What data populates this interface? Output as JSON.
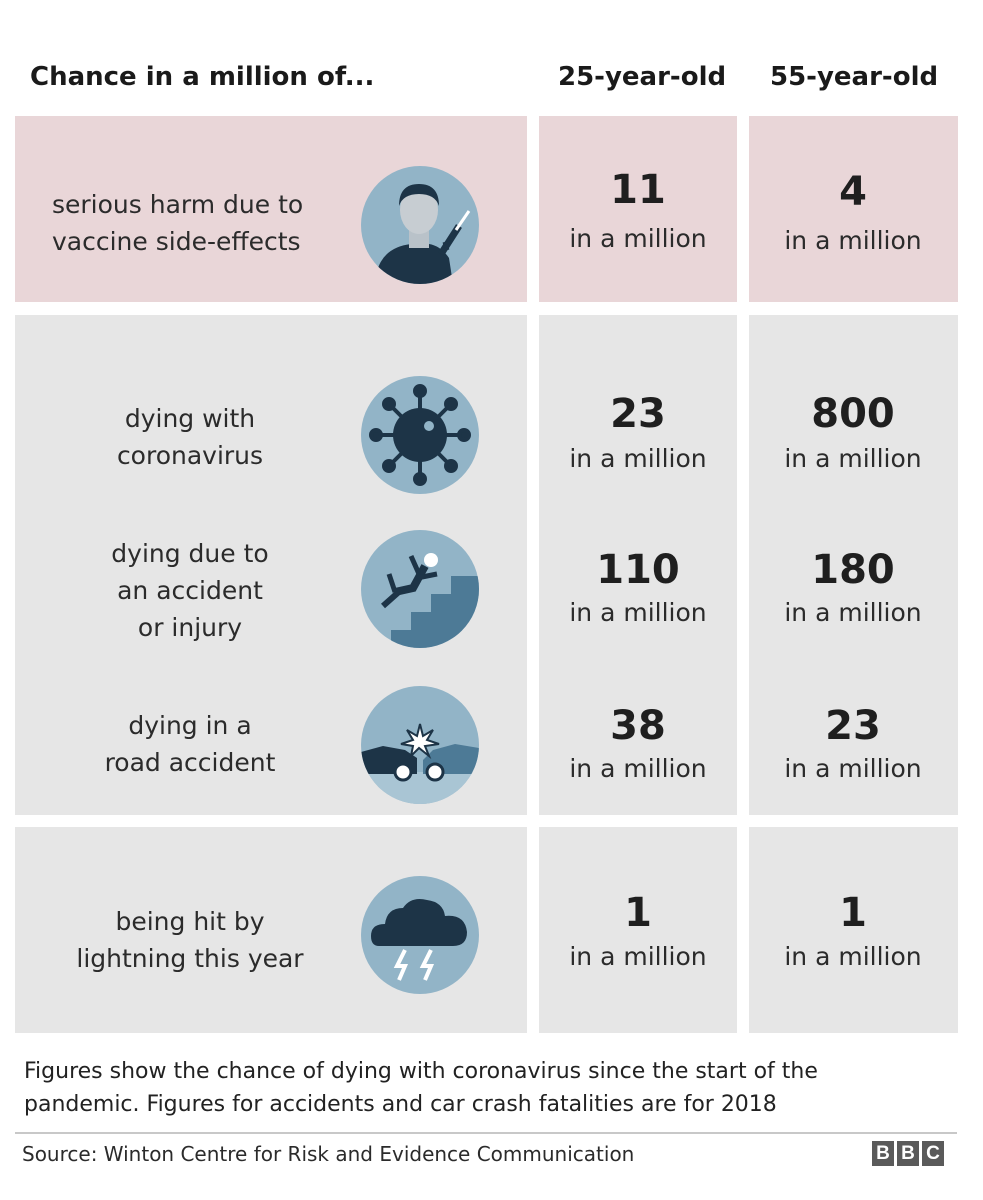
{
  "header": {
    "title": "Chance in a million of...",
    "col1": "25-year-old",
    "col2": "55-year-old"
  },
  "rows": [
    {
      "label_lines": [
        "serious harm due to",
        "vaccine side-effects"
      ],
      "icon": "vaccine-person-icon",
      "v25": "11",
      "v55": "4",
      "unit": "in a million"
    },
    {
      "label_lines": [
        "dying with",
        "coronavirus"
      ],
      "icon": "coronavirus-icon",
      "v25": "23",
      "v55": "800",
      "unit": "in a million"
    },
    {
      "label_lines": [
        "dying due to",
        "an accident",
        "or injury"
      ],
      "icon": "falling-person-icon",
      "v25": "110",
      "v55": "180",
      "unit": "in a million"
    },
    {
      "label_lines": [
        "dying in a",
        "road accident"
      ],
      "icon": "car-crash-icon",
      "v25": "38",
      "v55": "23",
      "unit": "in a million"
    },
    {
      "label_lines": [
        "being hit by",
        "lightning this year"
      ],
      "icon": "lightning-cloud-icon",
      "v25": "1",
      "v55": "1",
      "unit": "in a million"
    }
  ],
  "chart_data": {
    "type": "table",
    "title": "Chance in a million of...",
    "columns": [
      "25-year-old",
      "55-year-old"
    ],
    "rows": [
      {
        "category": "serious harm due to vaccine side-effects",
        "values": [
          11,
          4
        ]
      },
      {
        "category": "dying with coronavirus",
        "values": [
          23,
          800
        ]
      },
      {
        "category": "dying due to an accident or injury",
        "values": [
          110,
          180
        ]
      },
      {
        "category": "dying in a road accident",
        "values": [
          38,
          23
        ]
      },
      {
        "category": "being hit by lightning this year",
        "values": [
          1,
          1
        ]
      }
    ],
    "unit": "in a million"
  },
  "footer": {
    "note_line1": "Figures show the chance of dying with coronavirus since the start of the",
    "note_line2": "pandemic. Figures for accidents and car crash fatalities are for 2018",
    "source": "Source: Winton Centre for Risk and Evidence Communication",
    "logo": [
      "B",
      "B",
      "C"
    ]
  },
  "colors": {
    "vaccine_panel": "#e9d6d8",
    "other_panels": "#e6e6e6",
    "icon_circle": "#92b4c7",
    "icon_dark": "#1d3447"
  }
}
